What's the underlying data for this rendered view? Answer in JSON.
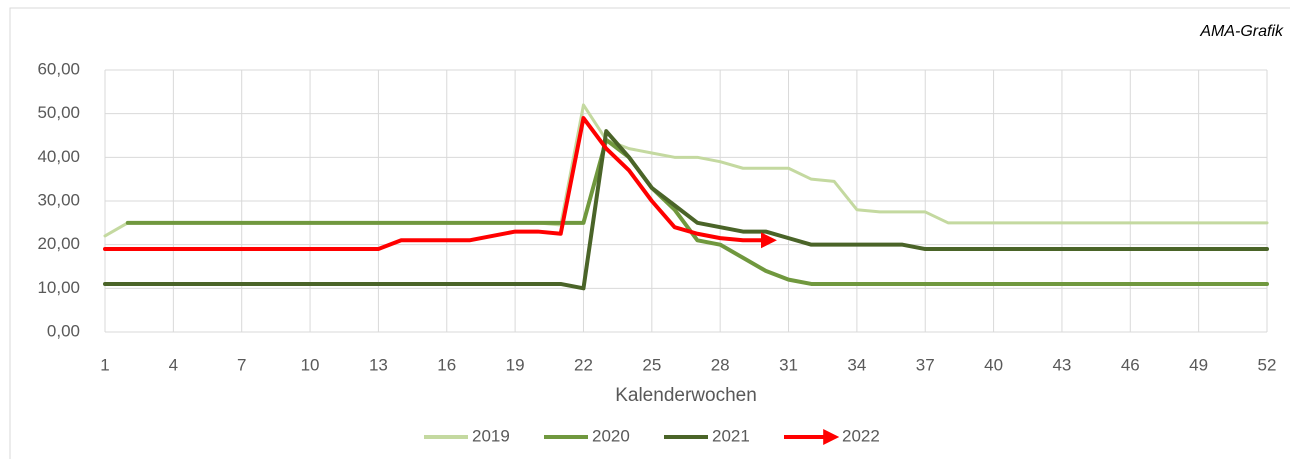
{
  "chart_data": {
    "type": "line",
    "annotation": "AMA-Grafik",
    "x_label": "Kalenderwochen",
    "x": [
      1,
      2,
      3,
      4,
      5,
      6,
      7,
      8,
      9,
      10,
      11,
      12,
      13,
      14,
      15,
      16,
      17,
      18,
      19,
      20,
      21,
      22,
      23,
      24,
      25,
      26,
      27,
      28,
      29,
      30,
      31,
      32,
      33,
      34,
      35,
      36,
      37,
      38,
      39,
      40,
      41,
      42,
      43,
      44,
      45,
      46,
      47,
      48,
      49,
      50,
      51,
      52
    ],
    "xlim": [
      1,
      52
    ],
    "xticks": [
      1,
      4,
      7,
      10,
      13,
      16,
      19,
      22,
      25,
      28,
      31,
      34,
      37,
      40,
      43,
      46,
      49,
      52
    ],
    "ylim": [
      0,
      60
    ],
    "yticks": [
      {
        "value": 0,
        "label": "0,00"
      },
      {
        "value": 10,
        "label": "10,00"
      },
      {
        "value": 20,
        "label": "20,00"
      },
      {
        "value": 30,
        "label": "30,00"
      },
      {
        "value": 40,
        "label": "40,00"
      },
      {
        "value": 50,
        "label": "50,00"
      },
      {
        "value": 60,
        "label": "60,00"
      }
    ],
    "grid": true,
    "legend": "bottom",
    "series": [
      {
        "name": "2019",
        "color": "#c4d9a0",
        "values": [
          22,
          25,
          25,
          25,
          25,
          25,
          25,
          25,
          25,
          25,
          25,
          25,
          25,
          25,
          25,
          25,
          25,
          25,
          25,
          25,
          24.5,
          52,
          44,
          42,
          41,
          40,
          40,
          39,
          37.5,
          37.5,
          37.5,
          35,
          34.5,
          28,
          27.5,
          27.5,
          27.5,
          25,
          25,
          25,
          25,
          25,
          25,
          25,
          25,
          25,
          25,
          25,
          25,
          25,
          25,
          25
        ]
      },
      {
        "name": "2020",
        "color": "#70983e",
        "values": [
          null,
          25,
          25,
          25,
          25,
          25,
          25,
          25,
          25,
          25,
          25,
          25,
          25,
          25,
          25,
          25,
          25,
          25,
          25,
          25,
          25,
          25,
          44,
          40,
          33,
          28,
          21,
          20,
          17,
          14,
          12,
          11,
          11,
          11,
          11,
          11,
          11,
          11,
          11,
          11,
          11,
          11,
          11,
          11,
          11,
          11,
          11,
          11,
          11,
          11,
          11,
          11
        ]
      },
      {
        "name": "2021",
        "color": "#4a6428",
        "values": [
          11,
          11,
          11,
          11,
          11,
          11,
          11,
          11,
          11,
          11,
          11,
          11,
          11,
          11,
          11,
          11,
          11,
          11,
          11,
          11,
          11,
          10,
          46,
          40,
          33,
          29,
          25,
          24,
          23,
          23,
          21.5,
          20,
          20,
          20,
          20,
          20,
          19,
          19,
          19,
          19,
          19,
          19,
          19,
          19,
          19,
          19,
          19,
          19,
          19,
          19,
          19,
          19
        ]
      },
      {
        "name": "2022",
        "color": "#ff0000",
        "values": [
          19,
          19,
          19,
          19,
          19,
          19,
          19,
          19,
          19,
          19,
          19,
          19,
          19,
          21,
          21,
          21,
          21,
          22,
          23,
          23,
          22.5,
          49,
          42,
          37,
          30,
          24,
          22.5,
          21.5,
          21,
          21,
          null,
          null,
          null,
          null,
          null,
          null,
          null,
          null,
          null,
          null,
          null,
          null,
          null,
          null,
          null,
          null,
          null,
          null,
          null,
          null,
          null,
          null
        ]
      }
    ]
  }
}
